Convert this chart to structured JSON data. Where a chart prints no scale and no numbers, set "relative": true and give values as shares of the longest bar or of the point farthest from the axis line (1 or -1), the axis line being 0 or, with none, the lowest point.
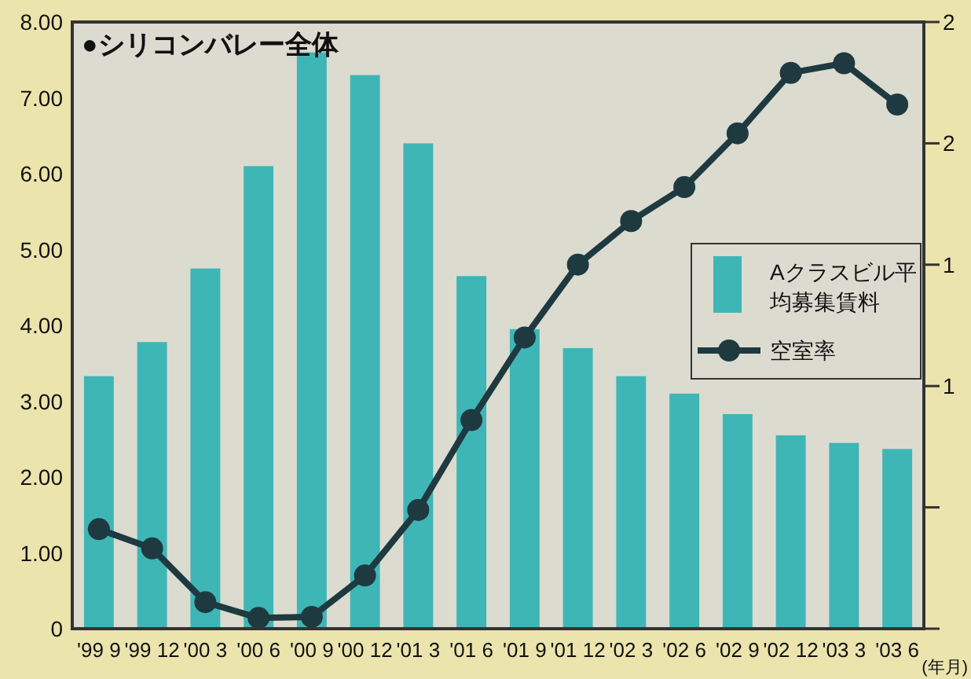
{
  "chart_data": [
    {
      "type": "bar",
      "title": "●シリコンバレー全体",
      "xlabel": "(年月)",
      "categories": [
        "'99 9",
        "'99 12",
        "'00 3",
        "'00 6",
        "'00 9",
        "'00 12",
        "'01 3",
        "'01 6",
        "'01 9",
        "'01 12",
        "'02 3",
        "'02 6",
        "'02 9",
        "'02 12",
        "'03 3",
        "'03 6"
      ],
      "series": [
        {
          "name": "Aクラスビル平均募集賃料",
          "color": "#3fb6b6",
          "values": [
            3.33,
            3.78,
            4.75,
            6.1,
            7.6,
            7.3,
            6.4,
            4.65,
            3.95,
            3.7,
            3.33,
            3.1,
            2.83,
            2.55,
            2.45,
            2.37
          ]
        }
      ],
      "ylim": [
        0,
        8
      ],
      "yticks": [
        0,
        {
          "value": 1,
          "label": "1.00"
        },
        {
          "value": 2,
          "label": "2.00"
        },
        {
          "value": 3,
          "label": "3.00"
        },
        {
          "value": 4,
          "label": "4.00"
        },
        {
          "value": 5,
          "label": "5.00"
        },
        {
          "value": 6,
          "label": "6.00"
        },
        {
          "value": 7,
          "label": "7.00"
        },
        {
          "value": 8,
          "label": "8.00"
        }
      ],
      "legend": "right"
    },
    {
      "type": "line",
      "relative": true,
      "marker": "circle",
      "categories": [
        null,
        null,
        null,
        null,
        null,
        null,
        null,
        null,
        null,
        null,
        null,
        null,
        null,
        null,
        null,
        null
      ],
      "series": [
        {
          "name": "空室率",
          "color": "#1e3a40",
          "values": [
            0.176,
            0.142,
            0.047,
            0.019,
            0.021,
            0.094,
            0.21,
            0.369,
            0.515,
            0.644,
            0.721,
            0.781,
            0.876,
            0.983,
            1,
            0.927
          ]
        }
      ],
      "annotations": [
        "2",
        "2",
        "1",
        "1"
      ],
      "legend": "right"
    }
  ]
}
